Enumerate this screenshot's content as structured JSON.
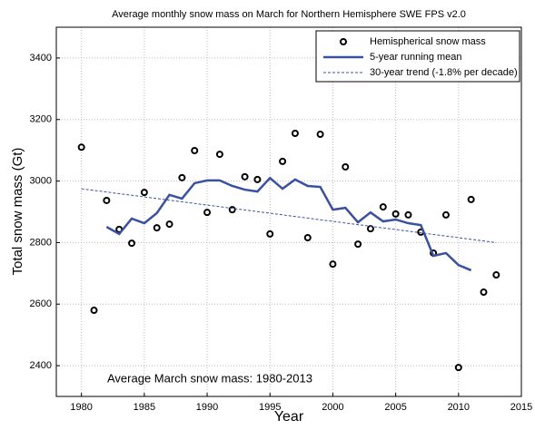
{
  "chart_data": {
    "type": "line",
    "title": "Average monthly snow mass on March for Northern Hemisphere SWE FPS v2.0",
    "x_label": "Year",
    "y_label": "Total snow mass (Gt)",
    "annotation": "Average March snow mass: 1980-2013",
    "xlim": [
      1978,
      2015
    ],
    "xticks": [
      1980,
      1985,
      1990,
      1995,
      2000,
      2005,
      2010,
      2015
    ],
    "ylim": [
      2300,
      3500
    ],
    "yticks": [
      2400,
      2600,
      2800,
      3000,
      3200,
      3400
    ],
    "grid": true,
    "legend": "top-right",
    "series": [
      {
        "name": "Hemispherical snow mass",
        "type": "scatter",
        "color": "#000000",
        "x": [
          1980,
          1981,
          1982,
          1983,
          1984,
          1985,
          1986,
          1987,
          1988,
          1989,
          1990,
          1991,
          1992,
          1993,
          1994,
          1995,
          1996,
          1997,
          1998,
          1999,
          2000,
          2001,
          2002,
          2003,
          2004,
          2005,
          2006,
          2007,
          2008,
          2009,
          2010,
          2011,
          2012,
          2013
        ],
        "values": [
          3110,
          2580,
          2937,
          2843,
          2798,
          2963,
          2848,
          2860,
          3011,
          3099,
          2898,
          3087,
          2907,
          3014,
          3005,
          2828,
          3064,
          3155,
          2816,
          3152,
          2730,
          3046,
          2795,
          2845,
          2916,
          2893,
          2890,
          2834,
          2766,
          2890,
          2394,
          2940,
          2639,
          2695
        ]
      },
      {
        "name": "5-year running mean",
        "type": "line",
        "color": "#3a50a0",
        "x": [
          1982,
          1983,
          1984,
          1985,
          1986,
          1987,
          1988,
          1989,
          1990,
          1991,
          1992,
          1993,
          1994,
          1995,
          1996,
          1997,
          1998,
          1999,
          2000,
          2001,
          2002,
          2003,
          2004,
          2005,
          2006,
          2007,
          2008,
          2009,
          2010,
          2011
        ],
        "values": [
          2851,
          2828,
          2878,
          2863,
          2896,
          2955,
          2943,
          2993,
          3002,
          3002,
          2984,
          2972,
          2966,
          3010,
          2975,
          3005,
          2984,
          2981,
          2907,
          2913,
          2866,
          2898,
          2869,
          2875,
          2863,
          2857,
          2757,
          2766,
          2727,
          2710
        ]
      },
      {
        "name": "30-year trend (-1.8% per decade)",
        "type": "dashed",
        "color": "#3a50a0",
        "x": [
          1980,
          2013
        ],
        "values": [
          2975,
          2800
        ]
      }
    ]
  }
}
